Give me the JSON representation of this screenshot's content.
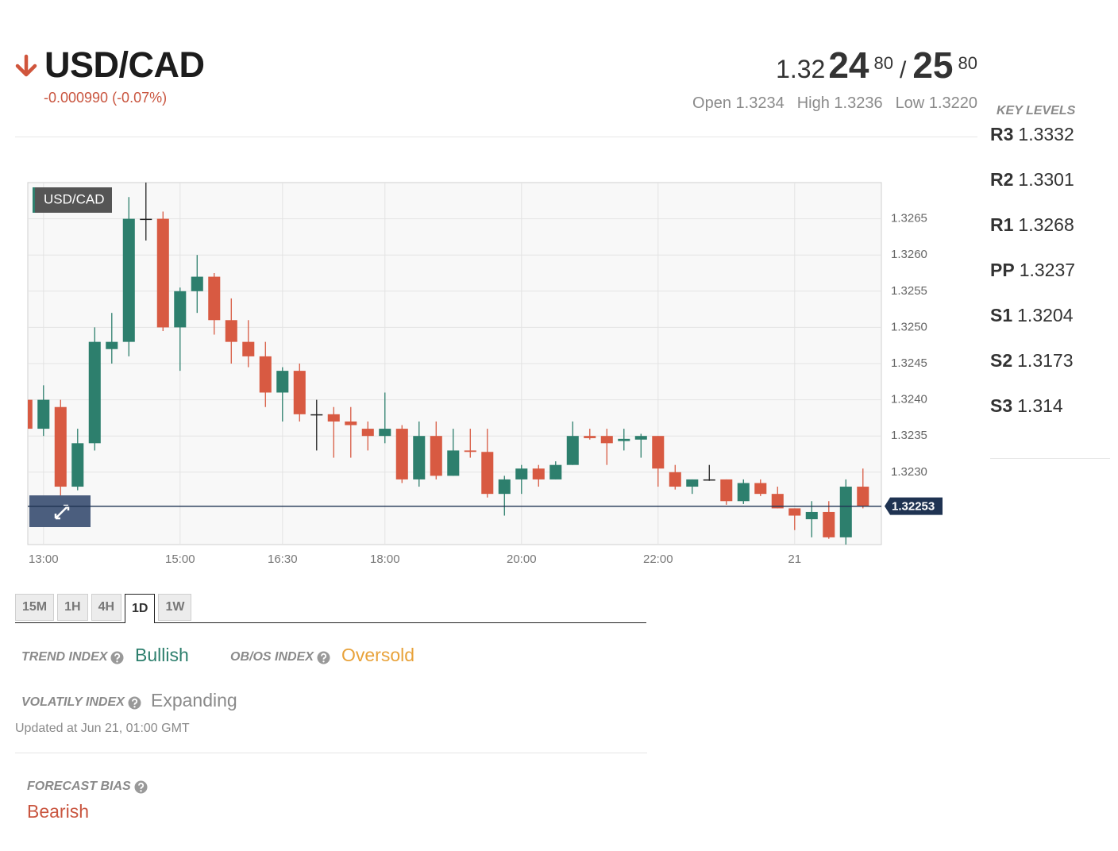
{
  "header": {
    "symbol": "USD/CAD",
    "change": "-0.000990 (-0.07%)",
    "price": {
      "prefix": "1.32",
      "bid_big": "24",
      "bid_small": "80",
      "separator": "/",
      "ask_big": "25",
      "ask_small": "80"
    },
    "stats": [
      {
        "label": "Open",
        "value": "1.3234"
      },
      {
        "label": "High",
        "value": "1.3236"
      },
      {
        "label": "Low",
        "value": "1.3220"
      }
    ]
  },
  "key_levels": {
    "title": "KEY LEVELS",
    "levels": [
      {
        "name": "R3",
        "value": 1.3332
      },
      {
        "name": "R2",
        "value": 1.3301
      },
      {
        "name": "R1",
        "value": 1.3268
      },
      {
        "name": "PP",
        "value": 1.3237
      },
      {
        "name": "S1",
        "value": 1.3204
      },
      {
        "name": "S2",
        "value": 1.3173
      },
      {
        "name": "S3",
        "value": 1.314
      }
    ]
  },
  "chart_data": {
    "type": "candlestick",
    "title": "USD/CAD",
    "x": [
      12.75,
      13,
      13.25,
      13.5,
      13.75,
      14,
      14.25,
      14.5,
      14.75,
      15,
      15.25,
      15.5,
      15.75,
      16,
      16.25,
      16.5,
      16.75,
      17,
      17.25,
      17.5,
      17.75,
      18,
      18.25,
      18.5,
      18.75,
      19,
      19.25,
      19.5,
      19.75,
      20,
      20.25,
      20.5,
      20.75,
      21,
      21.25,
      21.5,
      21.75,
      22,
      22.25,
      22.5,
      22.75,
      23,
      23.25,
      23.5,
      23.75,
      24,
      24.25,
      24.5,
      24.75,
      25
    ],
    "open": [
      1.324,
      1.3236,
      1.3239,
      1.3228,
      1.3234,
      1.3247,
      1.3248,
      1.3265,
      1.3265,
      1.325,
      1.3255,
      1.3257,
      1.3251,
      1.3248,
      1.3246,
      1.3241,
      1.3244,
      1.3238,
      1.3238,
      1.3237,
      1.3236,
      1.3235,
      1.3236,
      1.3229,
      1.3235,
      1.32295,
      1.3233,
      1.32328,
      1.3227,
      1.3229,
      1.32305,
      1.3229,
      1.3231,
      1.3235,
      1.3235,
      1.32343,
      1.32345,
      1.3235,
      1.323,
      1.3228,
      1.3229,
      1.3229,
      1.3226,
      1.32285,
      1.3227,
      1.3225,
      1.32235,
      1.32245,
      1.3221,
      1.3228
    ],
    "high": [
      1.3244,
      1.3242,
      1.324,
      1.3236,
      1.325,
      1.3252,
      1.3268,
      1.327,
      1.3266,
      1.32555,
      1.326,
      1.32575,
      1.3254,
      1.3251,
      1.3248,
      1.32445,
      1.3245,
      1.324,
      1.3239,
      1.3239,
      1.3237,
      1.3241,
      1.32365,
      1.3237,
      1.3237,
      1.3236,
      1.3236,
      1.3236,
      1.32295,
      1.3231,
      1.3231,
      1.32315,
      1.3237,
      1.3236,
      1.3236,
      1.3236,
      1.32353,
      1.3235,
      1.3231,
      1.3229,
      1.3231,
      1.3229,
      1.3229,
      1.3229,
      1.3228,
      1.3225,
      1.3226,
      1.3226,
      1.3229,
      1.32305
    ],
    "low": [
      1.3235,
      1.3235,
      1.3226,
      1.32275,
      1.3233,
      1.3245,
      1.3246,
      1.3262,
      1.32495,
      1.3244,
      1.3252,
      1.3249,
      1.3245,
      1.32445,
      1.3239,
      1.3237,
      1.3237,
      1.3233,
      1.3232,
      1.3232,
      1.3233,
      1.3234,
      1.32285,
      1.3228,
      1.3229,
      1.32295,
      1.3232,
      1.32265,
      1.3224,
      1.3227,
      1.3228,
      1.3229,
      1.3231,
      1.32345,
      1.3231,
      1.3233,
      1.3232,
      1.3228,
      1.32276,
      1.3227,
      1.32288,
      1.32255,
      1.32256,
      1.32267,
      1.3225,
      1.3222,
      1.3221,
      1.32208,
      1.322,
      1.3225
    ],
    "close": [
      1.3236,
      1.324,
      1.3228,
      1.3234,
      1.3248,
      1.3248,
      1.3265,
      1.3265,
      1.325,
      1.3255,
      1.3257,
      1.3251,
      1.3248,
      1.3246,
      1.3241,
      1.3244,
      1.3238,
      1.3238,
      1.3237,
      1.32365,
      1.3235,
      1.3236,
      1.3229,
      1.3235,
      1.32295,
      1.3233,
      1.32328,
      1.3227,
      1.3229,
      1.32305,
      1.3229,
      1.3231,
      1.3235,
      1.32347,
      1.3234,
      1.32346,
      1.3235,
      1.32305,
      1.3228,
      1.3229,
      1.3229,
      1.3226,
      1.32285,
      1.3227,
      1.3225,
      1.3224,
      1.32245,
      1.3221,
      1.3228,
      1.32253
    ],
    "up_color": "#2d7f6d",
    "down_color": "#d85a42",
    "flat_color": "#222222",
    "xlim": [
      12.77,
      25.27
    ],
    "xticks": [
      {
        "value": 13,
        "label": "13:00"
      },
      {
        "value": 15,
        "label": "15:00"
      },
      {
        "value": 16.5,
        "label": "16:30"
      },
      {
        "value": 18,
        "label": "18:00"
      },
      {
        "value": 20,
        "label": "20:00"
      },
      {
        "value": 22,
        "label": "22:00"
      },
      {
        "value": 24,
        "label": "21"
      }
    ],
    "ylim": [
      1.322,
      1.327
    ],
    "yticks": [
      {
        "value": 1.323,
        "label": "1.3230"
      },
      1.3235,
      {
        "value": 1.324,
        "label": "1.3240"
      },
      1.3245,
      {
        "value": 1.325,
        "label": "1.3250"
      },
      1.3255,
      {
        "value": 1.326,
        "label": "1.3260"
      },
      1.3265
    ],
    "grid": true,
    "last_price": 1.32253,
    "last_price_color": "#1f3352"
  },
  "timeframes": [
    "15M",
    "1H",
    "4H",
    "1D",
    "1W"
  ],
  "active_timeframe": 3,
  "indicators": [
    {
      "label": "TREND INDEX",
      "value": "Bullish",
      "color": "#2d7f6d"
    },
    {
      "label": "OB/OS INDEX",
      "value": "Oversold",
      "color": "#e8a23a"
    },
    {
      "label": "VOLATILY INDEX",
      "value": "Expanding",
      "color": "#8a8a8a"
    }
  ],
  "updated": "Updated at Jun 21, 01:00 GMT",
  "forecast": {
    "label": "FORECAST BIAS",
    "value": "Bearish",
    "color": "#c9553f"
  }
}
